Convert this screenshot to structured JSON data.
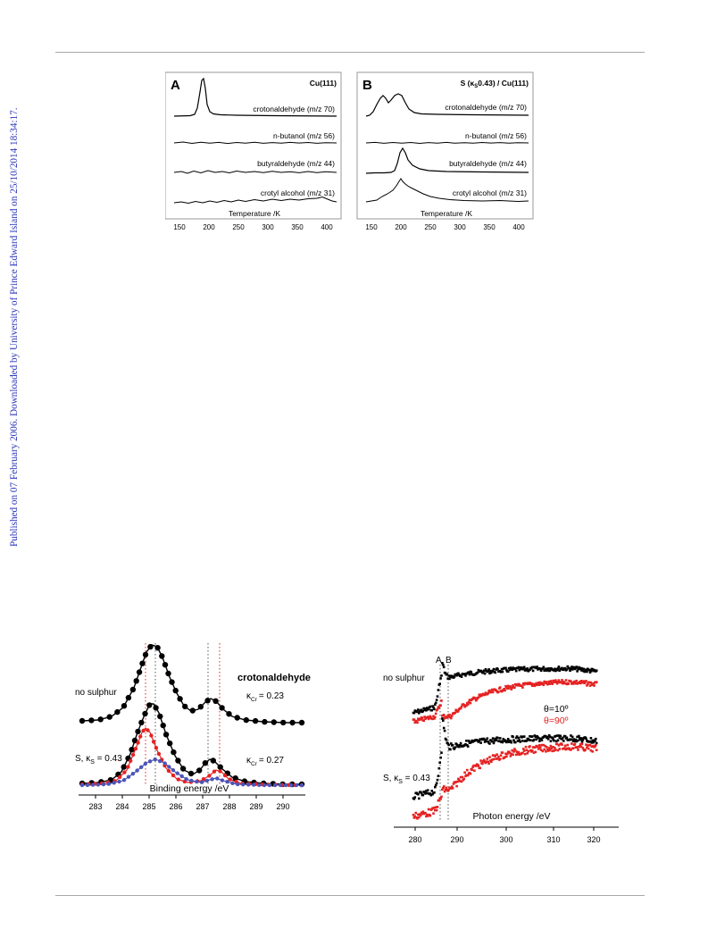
{
  "side_note": "Published on 07 February 2006. Downloaded by University of Prince Edward Island on 25/10/2014 18:34:17.",
  "tpd": {
    "xlabel": "Temperature /K",
    "xticks": [
      "150",
      "200",
      "250",
      "300",
      "350",
      "400"
    ],
    "panelA": {
      "letter": "A",
      "title": "Cu(111)"
    },
    "panelB": {
      "letter": "B",
      "title_pre": "S (",
      "title_kappa": "κ",
      "title_sub": "S",
      "title_post": "0.43) / Cu(111)"
    },
    "traces": [
      "crotonaldehyde (m/z 70)",
      "n-butanol (m/z 56)",
      "butyraldehyde (m/z 44)",
      "crotyl alcohol (m/z 31)"
    ]
  },
  "xps": {
    "xlabel": "Binding energy /eV",
    "xticks": [
      "283",
      "284",
      "285",
      "286",
      "287",
      "288",
      "289",
      "290"
    ],
    "title": "crotonaldehyde",
    "label_top": "no sulphur",
    "label_bottom_pre": "S, ",
    "label_bottom_kappa": "κ",
    "label_bottom_sub": "S",
    "label_bottom_post": " = 0.43",
    "kcr_top": "= 0.23",
    "kcr_bottom": "= 0.27",
    "kcr_sym": "κ",
    "kcr_sub": "Cr"
  },
  "nexafs": {
    "xlabel": "Photon energy /eV",
    "xticks": [
      "280",
      "290",
      "300",
      "310",
      "320"
    ],
    "label_top": "no sulphur",
    "label_bottom_pre": "S, ",
    "label_bottom_kappa": "κ",
    "label_bottom_sub": "S",
    "label_bottom_post": " = 0.43",
    "peak_A": "A",
    "peak_B": "B",
    "legend_10": "θ=10º",
    "legend_90": "θ=90º"
  },
  "colors": {
    "red": "#e52222",
    "blue": "#4b55b8",
    "black": "#000000",
    "sidebar": "#2a36b8"
  }
}
